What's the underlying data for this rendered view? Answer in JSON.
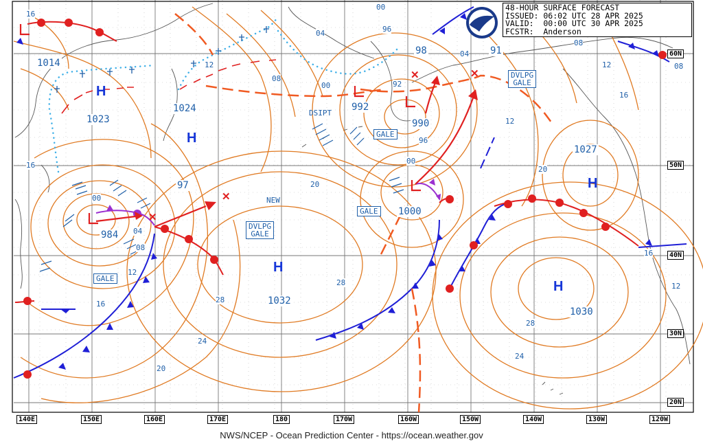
{
  "header": {
    "line1": "48-HOUR SURFACE FORECAST",
    "line2": "ISSUED: 06:02 UTC 28 APR 2025",
    "line3": "VALID:  00:00 UTC 30 APR 2025",
    "line4": "FCSTR:  Anderson"
  },
  "logo_text": "NOAA",
  "footer": "NWS/NCEP - Ocean Prediction Center - https://ocean.weather.gov",
  "longitude_labels": [
    "140E",
    "150E",
    "160E",
    "170E",
    "180",
    "170W",
    "160W",
    "150W",
    "140W",
    "130W",
    "120W"
  ],
  "latitude_labels": [
    "60N",
    "50N",
    "40N",
    "30N",
    "20N"
  ],
  "pressure_centers": [
    {
      "kind": "H",
      "value": "1023"
    },
    {
      "kind": "H",
      "value": "1024"
    },
    {
      "kind": "L",
      "value": "984"
    },
    {
      "kind": "H",
      "value": "1032"
    },
    {
      "kind": "L",
      "value": "992"
    },
    {
      "kind": "L",
      "value": "990"
    },
    {
      "kind": "L",
      "value": "1000"
    },
    {
      "kind": "H",
      "value": "1027"
    },
    {
      "kind": "H",
      "value": "1030"
    },
    {
      "kind": "L",
      "value": "98"
    },
    {
      "kind": "L",
      "value": "97"
    },
    {
      "kind": "L",
      "value": "91"
    },
    {
      "kind": "H",
      "value": "1014"
    }
  ],
  "box_labels": [
    "GALE",
    "GALE",
    "GALE",
    "DVLPG\nGALE",
    "DVLPG\nGALE"
  ],
  "text_labels": [
    "DSIPT",
    "NEW"
  ],
  "contour_labels": [
    "16",
    "04",
    "00",
    "96",
    "92",
    "08",
    "00",
    "04",
    "08",
    "12",
    "16",
    "20",
    "24",
    "28",
    "28",
    "24",
    "20",
    "16",
    "12",
    "08",
    "04",
    "00",
    "96",
    "12",
    "16",
    "20",
    "28",
    "16",
    "12",
    "08",
    "00",
    "12",
    "16",
    "20",
    "16",
    "08",
    "00",
    "04",
    "08",
    "12"
  ],
  "colors": {
    "isobar": "#e07a22",
    "front_cold": "#1f1fd6",
    "front_warm": "#e02020",
    "stationary": "#3fb0e8",
    "label": "#1f5fa8",
    "occluded": "#9b30d0"
  }
}
